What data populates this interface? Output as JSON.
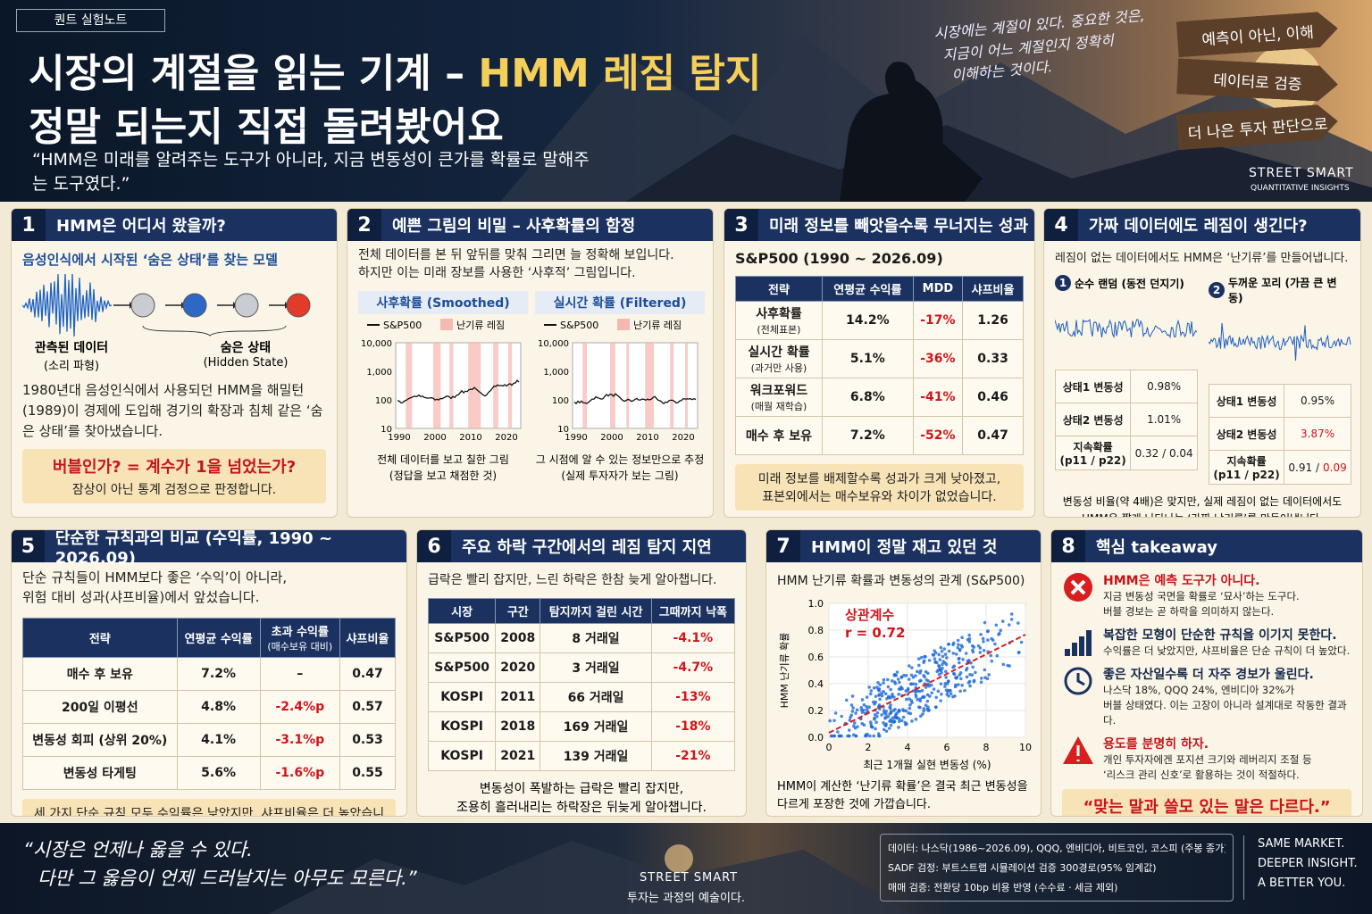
{
  "header": {
    "tag": "퀀트 실험노트",
    "title_part1": "시장의 계절을 읽는 기계 – ",
    "title_highlight": "HMM 레짐 탐지",
    "title_line2": "정말 되는지 직접 돌려봤어요",
    "quote": "“HMM은 미래를 알려주는 도구가 아니라, 지금 변동성이 큰가를 확률로 말해주는 도구였다.”",
    "side_quote": [
      "시장에는 계절이 있다. 중요한 것은,",
      "지금이 어느 계절인지 정확히",
      "이해하는 것이다."
    ],
    "signs": [
      "예측이 아닌, 이해",
      "데이터로 검증",
      "더 나은 투자 판단으로"
    ],
    "brand": "STREET SMART",
    "brand_sub": "QUANTITATIVE INSIGHTS"
  },
  "panels": [
    {
      "number": "1",
      "title": "HMM은 어디서 왔을까?",
      "subtitle": "음성인식에서 시작된 ‘숨은 상태’를 찾는 모델",
      "observed_label": "관측된 데이터",
      "observed_sub": "(소리 파형)",
      "hidden_label": "숨은 상태",
      "hidden_sub": "(Hidden State)",
      "body": "1980년대 음성인식에서 사용되던 HMM을 해밀턴(1989)이 경제에 도입해 경기의 확장과 침체 같은 ‘숨은 상태’를 찾아냈습니다.",
      "callout_question": "버블인가?  =  계수가 1을 넘었는가?",
      "callout_note": "잠상이 아닌 통계 검정으로 판정합니다."
    },
    {
      "number": "2",
      "title": "예쁜 그림의 비밀 – 사후확률의 함정",
      "body": [
        "전체 데이터를 본 뒤 앞뒤를 맞춰 그리면 늘 정확해 보입니다.",
        "하지만 이는 미래 장보를 사용한 ‘사후적’ 그림입니다."
      ],
      "legend": [
        "S&P500",
        "난기류 레짐"
      ],
      "yticks": [
        "10,000",
        "1,000",
        "100",
        "10"
      ],
      "xticks": [
        "1990",
        "2000",
        "2010",
        "2020"
      ],
      "charts": [
        {
          "title": "사후확률 (Smoothed)",
          "caption": [
            "전체 데이터를 보고 칠한 그림",
            "(정답을 보고 채점한 것)"
          ]
        },
        {
          "title": "실시간 확률 (Filtered)",
          "caption": [
            "그 시점에 알 수 있는 정보만으로 추정",
            "(실제 투자자가 보는 그림)"
          ]
        }
      ]
    },
    {
      "number": "3",
      "title": "미래 정보를 빼앗을수록 무너지는 성과",
      "subtitle": "S&P500 (1990 ~ 2026.09)",
      "headers": [
        "전략",
        "연평균 수익률",
        "MDD",
        "샤프비율"
      ],
      "rows": [
        {
          "name": "사후확률",
          "note": "(전체표본)",
          "cells": [
            "14.2%",
            "-17%",
            "1.26"
          ]
        },
        {
          "name": "실시간 확률",
          "note": "(과거만 사용)",
          "cells": [
            "5.1%",
            "-36%",
            "0.33"
          ]
        },
        {
          "name": "워크포워드",
          "note": "(매월 재학습)",
          "cells": [
            "6.8%",
            "-41%",
            "0.46"
          ]
        },
        {
          "name": "매수 후 보유",
          "cells": [
            "7.2%",
            "-52%",
            "0.47"
          ]
        }
      ],
      "footer": [
        "미래 정보를 배제할수록 성과가 크게 낮아졌고,",
        "표본외에서는 매수보유와 차이가 없었습니다."
      ]
    },
    {
      "number": "4",
      "title": "가짜 데이터에도 레짐이 생긴다?",
      "subtitle": "레짐이 없는 데이터에서도 HMM은 ‘난기류’를 만들어냅니다.",
      "cases": [
        {
          "num": "1",
          "title": "순수 랜덤 (동전 던지기)",
          "rows": [
            [
              "상태1 변동성",
              "0.98%"
            ],
            [
              "상태2 변동성",
              "1.01%"
            ],
            [
              "지속확률",
              "(p11 / p22)",
              "0.32 / 0.04"
            ]
          ]
        },
        {
          "num": "2",
          "title": "두꺼운 꼬리 (가끔 큰 변동)",
          "rows": [
            [
              "상태1 변동성",
              "0.95%"
            ],
            [
              "상태2 변동성",
              "3.87%"
            ],
            [
              "지속확률",
              "(p11 / p22)",
              "0.91 /",
              "0.09"
            ]
          ]
        }
      ],
      "footer": [
        "변동성 비율(약 4배)은 맞지만, 실제 레짐이 없는 데이터에서도",
        "HMM은 짧게 나타나는 ‘가짜 난기류’를 만들어냅니다."
      ]
    },
    {
      "number": "5",
      "title": "단순한 규칙과의 비교 (수익률, 1990 ~ 2026.09)",
      "body": [
        "단순 규칙들이 HMM보다 좋은 ‘수익’이 아니라,",
        "위험 대비 성과(샤프비율)에서 앞섰습니다."
      ],
      "headers": [
        "전략",
        "연평균 수익률",
        "초과 수익률",
        "(매수보유 대비)",
        "샤프비율"
      ],
      "rows": [
        [
          "매수 후 보유",
          "7.2%",
          "–",
          "0.47"
        ],
        [
          "200일 이평선",
          "4.8%",
          "-2.4%p",
          "0.57"
        ],
        [
          "변동성 회피 (상위 20%)",
          "4.1%",
          "-3.1%p",
          "0.53"
        ],
        [
          "변동성 타게팅",
          "5.6%",
          "-1.6%p",
          "0.55"
        ]
      ],
      "footer": "세 가지 단순 규칙 모두 수익률은 낮았지만, 샤프비율은 더 높았습니다."
    },
    {
      "number": "6",
      "title": "주요 하락 구간에서의 레짐 탐지 지연",
      "subtitle": "급락은 빨리 잡지만, 느린 하락은 한참 늦게 알아챕니다.",
      "headers": [
        "시장",
        "구간",
        "탐지까지 걸린 시간",
        "그때까지 낙폭"
      ],
      "rows": [
        [
          "S&P500",
          "2008",
          "8 거래일",
          "-4.1%"
        ],
        [
          "S&P500",
          "2020",
          "3 거래일",
          "-4.7%"
        ],
        [
          "KOSPI",
          "2011",
          "66 거래일",
          "-13%"
        ],
        [
          "KOSPI",
          "2018",
          "169 거래일",
          "-18%"
        ],
        [
          "KOSPI",
          "2021",
          "139 거래일",
          "-21%"
        ]
      ],
      "footer": [
        "변동성이 폭발하는 급락은 빨리 잡지만,",
        "조용히 흘러내리는 하락장은 뒤늦게 알아챕니다."
      ]
    },
    {
      "number": "7",
      "title": "HMM이 정말 재고 있던 것",
      "subtitle": "HMM 난기류 확률과 변동성의 관계 (S&P500)",
      "y_label": "HMM 난기류 확률",
      "x_label": "최근 1개월 실현 변동성 (%)",
      "corr_label": "상관계수",
      "corr_value": "r = 0.72",
      "yticks": [
        "0.0",
        "0.2",
        "0.4",
        "0.6",
        "0.8",
        "1.0"
      ],
      "xticks": [
        "0",
        "2",
        "4",
        "6",
        "8",
        "10"
      ],
      "footer": [
        "HMM이 계산한 ‘난기류 확률’은 결국 최근 변동성을",
        "다르게 포장한 것에 가깝습니다."
      ]
    },
    {
      "number": "8",
      "title": "핵심 takeaway",
      "items": [
        {
          "title": "HMM은 예측 도구가 아니다.",
          "body": [
            "지금 변동성 국면을 확률로 ‘묘사’하는 도구다.",
            "버블 경보는 곧 하락을 의미하지 않는다."
          ]
        },
        {
          "title": "복잡한 모형이 단순한 규칙을 이기지 못한다.",
          "body": [
            "수익률은 더 낮았지만, 샤프비율은 단순 규칙이 더 높았다."
          ]
        },
        {
          "title": "좋은 자산일수록 더 자주 경보가 울린다.",
          "body": [
            "나스닥 18%, QQQ 24%, 엔비디아 32%가",
            "버블 상태였다. 이는 고장이 아니라 설계대로 작동한 결과다."
          ]
        },
        {
          "title": "용도를 분명히 하자.",
          "body": [
            "개인 투자자에겐 포지션 크기와 레버리지 조절 등",
            "‘리스크 관리 신호’로 활용하는 것이 적절하다."
          ]
        }
      ],
      "closing": "“맞는 말과 쓸모 있는 말은 다르다.”"
    }
  ],
  "footer": {
    "quote": [
      "“시장은 언제나 옳을 수 있다.",
      "다만 그 옳음이 언제 드러날지는 아무도 모른다.”"
    ],
    "brand": "STREET SMART",
    "motto": "투자는 과정의 예술이다.",
    "notes": [
      "데이터: 나스닥(1986~2026.09), QQQ, 엔비디아, 비트코인, 코스피 (주봉 종가)",
      "SADF 검정: 부트스트랩 시뮬레이션 검증 300경로(95% 임계값)",
      "매매 검증: 전환당 10bp 비용 반영 (수수료 · 세금 제외)"
    ],
    "tagline": [
      "SAME MARKET.",
      "DEEPER INSIGHT.",
      "A BETTER YOU."
    ]
  }
}
